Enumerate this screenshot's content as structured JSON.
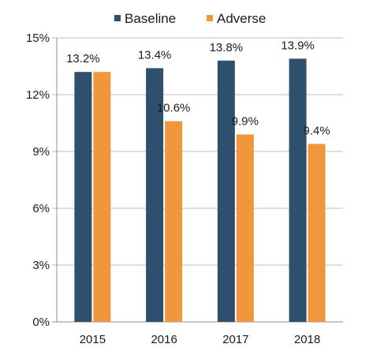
{
  "chart_data": {
    "type": "bar",
    "categories": [
      "2015",
      "2016",
      "2017",
      "2018"
    ],
    "series": [
      {
        "name": "Baseline",
        "color": "#2f4f6e",
        "values": [
          13.2,
          13.4,
          13.8,
          13.9
        ],
        "labels": [
          "13.2%",
          "13.4%",
          "13.8%",
          "13.9%"
        ]
      },
      {
        "name": "Adverse",
        "color": "#f0963c",
        "values": [
          13.2,
          10.6,
          9.9,
          9.4
        ],
        "labels": [
          "",
          "10.6%",
          "9.9%",
          "9.4%"
        ]
      }
    ],
    "ylim": [
      0,
      15
    ],
    "yticks": [
      {
        "value": 0,
        "label": "0%"
      },
      {
        "value": 3,
        "label": "3%"
      },
      {
        "value": 6,
        "label": "6%"
      },
      {
        "value": 9,
        "label": "9%"
      },
      {
        "value": 12,
        "label": "12%"
      },
      {
        "value": 15,
        "label": "15%"
      }
    ],
    "grid": true,
    "legend": "top"
  }
}
